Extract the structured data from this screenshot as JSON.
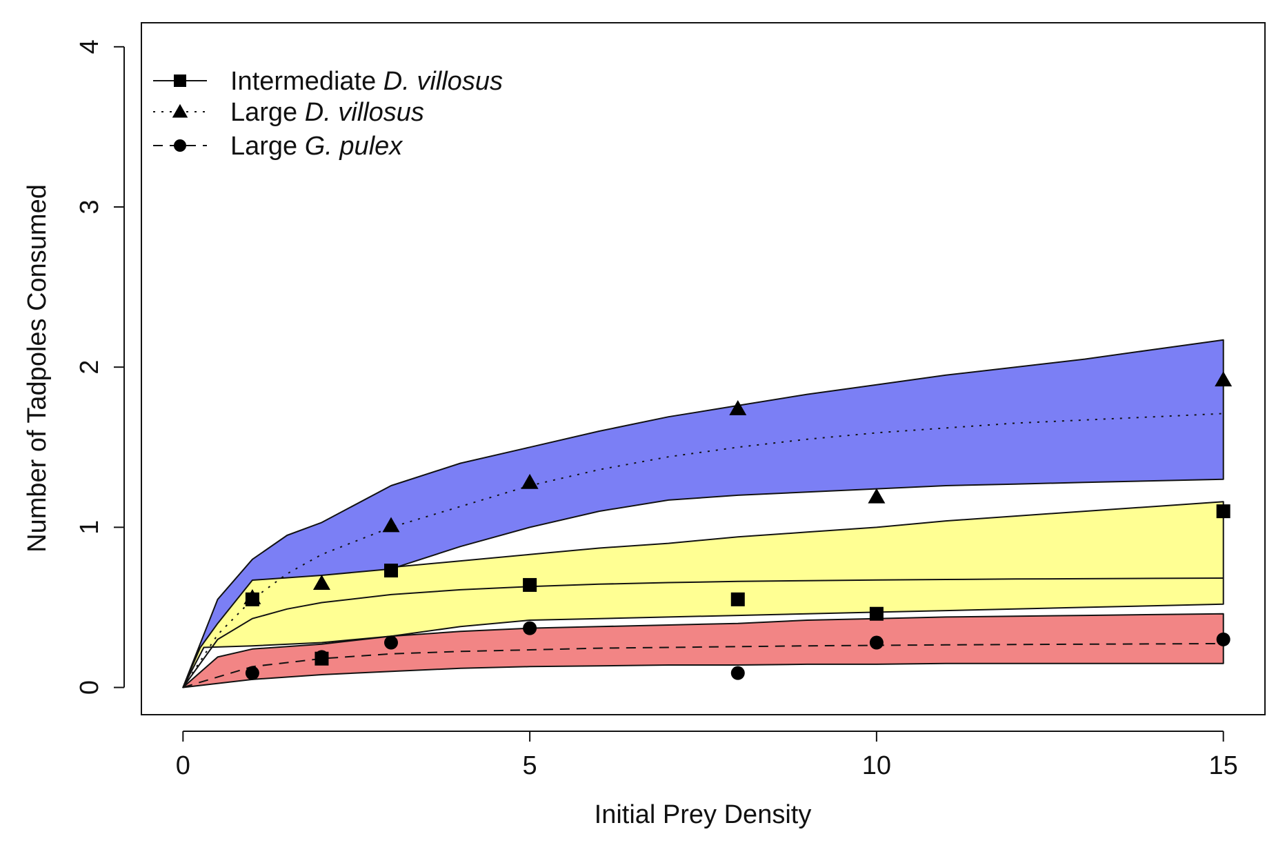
{
  "chart_data": {
    "type": "line",
    "xlabel": "Initial Prey Density",
    "ylabel": "Number of Tadpoles Consumed",
    "xlim": [
      -0.6,
      15.6
    ],
    "ylim": [
      -0.17,
      4.15
    ],
    "xticks": [
      0,
      5,
      10,
      15
    ],
    "yticks": [
      0,
      1,
      2,
      3,
      4
    ],
    "x_tick_labels": [
      "0",
      "5",
      "10",
      "15"
    ],
    "y_tick_labels": [
      "0",
      "1",
      "2",
      "3",
      "4"
    ],
    "grid": false,
    "legend_position": "top-left",
    "legend": [
      {
        "name_prefix": "Intermediate ",
        "name_italic": "D. villosus",
        "line_style": "solid",
        "marker": "square"
      },
      {
        "name_prefix": "Large ",
        "name_italic": "D. villosus",
        "line_style": "dotted",
        "marker": "triangle"
      },
      {
        "name_prefix": "Large ",
        "name_italic": "G. pulex",
        "line_style": "dashed",
        "marker": "circle"
      }
    ],
    "series": [
      {
        "name": "Intermediate D. villosus",
        "marker": "square",
        "line_style": "solid",
        "points": {
          "x": [
            1,
            2,
            3,
            5,
            8,
            10,
            15
          ],
          "y": [
            0.55,
            0.18,
            0.73,
            0.64,
            0.55,
            0.46,
            1.1
          ]
        },
        "curve": {
          "x": [
            0,
            0.5,
            1,
            1.5,
            2,
            3,
            4,
            5,
            6,
            7,
            8,
            9,
            10,
            11,
            12,
            13,
            14,
            15
          ],
          "y": [
            0,
            0.3,
            0.43,
            0.49,
            0.53,
            0.58,
            0.61,
            0.63,
            0.645,
            0.655,
            0.662,
            0.667,
            0.671,
            0.674,
            0.677,
            0.679,
            0.681,
            0.683
          ]
        },
        "band_upper": {
          "x": [
            0,
            0.6,
            1,
            2,
            3,
            4,
            5,
            6,
            7,
            8,
            9,
            10,
            11,
            12,
            13,
            14,
            15
          ],
          "y": [
            0,
            0.6,
            0.68,
            0.72,
            0.75,
            0.79,
            0.83,
            0.87,
            0.9,
            0.94,
            0.97,
            1.0,
            1.04,
            1.07,
            1.1,
            1.13,
            1.16
          ]
        },
        "band_lower": {
          "x": [
            0,
            0.3,
            1,
            2,
            3,
            4,
            5,
            6,
            7,
            8,
            9,
            10,
            11,
            12,
            13,
            14,
            15
          ],
          "y": [
            0,
            0.25,
            0.26,
            0.28,
            0.32,
            0.38,
            0.42,
            0.43,
            0.44,
            0.45,
            0.46,
            0.47,
            0.48,
            0.49,
            0.5,
            0.51,
            0.52
          ]
        },
        "band_color": "#ffff80",
        "band_opacity": 0.85
      },
      {
        "name": "Large D. villosus",
        "marker": "triangle",
        "line_style": "dotted",
        "points": {
          "x": [
            1,
            2,
            3,
            5,
            8,
            10,
            15
          ],
          "y": [
            0.56,
            0.65,
            1.01,
            1.28,
            1.74,
            1.19,
            1.92
          ]
        },
        "curve": {
          "x": [
            0,
            0.5,
            1,
            1.5,
            2,
            3,
            4,
            5,
            6,
            7,
            8,
            9,
            10,
            11,
            12,
            13,
            14,
            15
          ],
          "y": [
            0,
            0.33,
            0.55,
            0.71,
            0.83,
            1.0,
            1.13,
            1.26,
            1.36,
            1.44,
            1.5,
            1.55,
            1.59,
            1.62,
            1.65,
            1.67,
            1.69,
            1.71
          ]
        },
        "band_upper": {
          "x": [
            0,
            0.5,
            1,
            1.5,
            2,
            3,
            4,
            5,
            6,
            7,
            8,
            9,
            10,
            11,
            12,
            13,
            14,
            15
          ],
          "y": [
            0,
            0.55,
            0.8,
            0.95,
            1.03,
            1.26,
            1.4,
            1.5,
            1.6,
            1.69,
            1.76,
            1.83,
            1.89,
            1.95,
            2.0,
            2.05,
            2.11,
            2.17
          ]
        },
        "band_lower": {
          "x": [
            0,
            0.2,
            0.5,
            1,
            2,
            3,
            4,
            5,
            6,
            7,
            8,
            9,
            10,
            11,
            12,
            13,
            14,
            15
          ],
          "y": [
            0,
            0.22,
            0.4,
            0.67,
            0.7,
            0.74,
            0.88,
            1.0,
            1.1,
            1.17,
            1.2,
            1.22,
            1.24,
            1.26,
            1.27,
            1.28,
            1.29,
            1.3
          ]
        },
        "band_color": "#7b7ff5",
        "band_opacity": 1.0
      },
      {
        "name": "Large G. pulex",
        "marker": "circle",
        "line_style": "dashed",
        "points": {
          "x": [
            1,
            2,
            3,
            5,
            8,
            10,
            15
          ],
          "y": [
            0.09,
            0.19,
            0.28,
            0.37,
            0.09,
            0.28,
            0.3
          ]
        },
        "curve": {
          "x": [
            0,
            1,
            2,
            3,
            4,
            5,
            6,
            7,
            8,
            9,
            10,
            11,
            12,
            13,
            14,
            15
          ],
          "y": [
            0,
            0.13,
            0.18,
            0.21,
            0.225,
            0.235,
            0.245,
            0.25,
            0.255,
            0.26,
            0.263,
            0.266,
            0.268,
            0.27,
            0.272,
            0.274
          ]
        },
        "band_upper": {
          "x": [
            0,
            0.5,
            1,
            2,
            3,
            4,
            5,
            6,
            7,
            8,
            9,
            10,
            11,
            12,
            13,
            14,
            15
          ],
          "y": [
            0,
            0.19,
            0.24,
            0.27,
            0.32,
            0.35,
            0.37,
            0.38,
            0.39,
            0.4,
            0.42,
            0.43,
            0.44,
            0.445,
            0.45,
            0.455,
            0.46
          ]
        },
        "band_lower": {
          "x": [
            0,
            1,
            2,
            3,
            4,
            5,
            6,
            7,
            8,
            9,
            10,
            11,
            12,
            13,
            14,
            15
          ],
          "y": [
            0,
            0.05,
            0.08,
            0.1,
            0.12,
            0.13,
            0.135,
            0.14,
            0.14,
            0.145,
            0.145,
            0.15,
            0.15,
            0.15,
            0.15,
            0.15
          ]
        },
        "band_color": "#f07070",
        "band_opacity": 0.85
      }
    ],
    "colors": {
      "points": "#000000",
      "axes": "#111111"
    }
  }
}
